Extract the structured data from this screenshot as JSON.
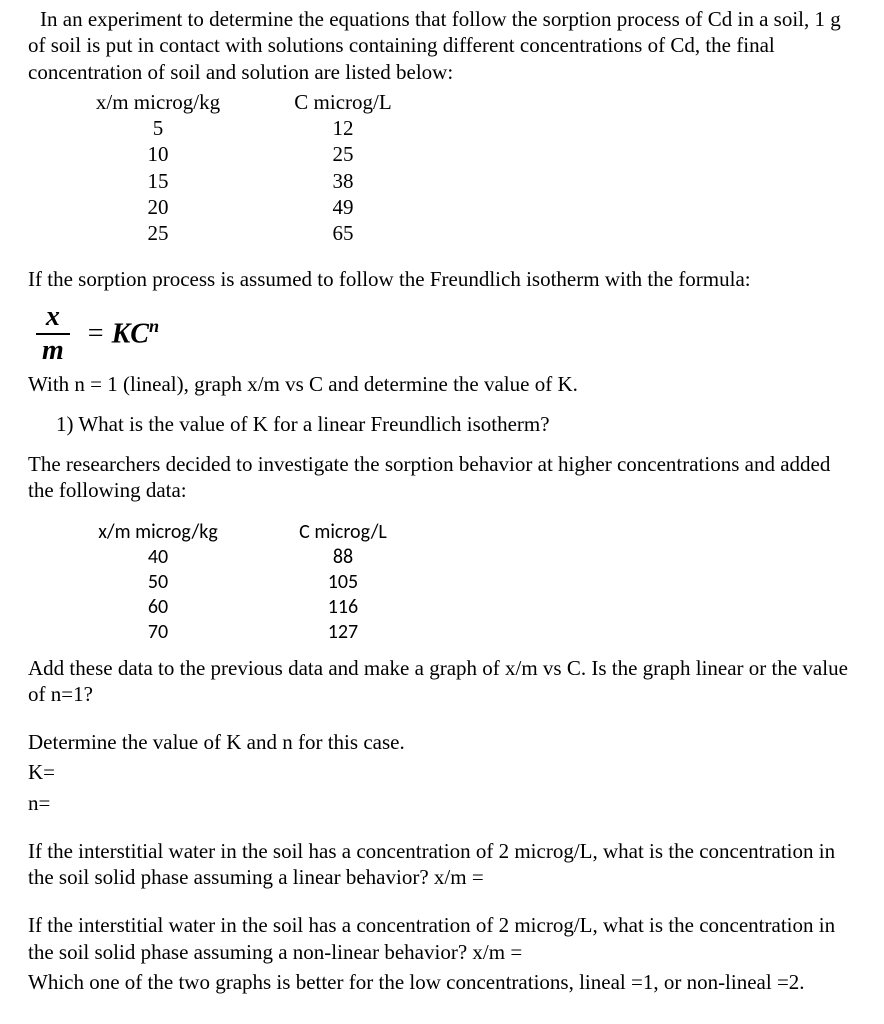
{
  "intro": "In an experiment to determine the equations that follow the sorption process of Cd in a soil, 1 g of soil is put in contact with solutions containing different concentrations of Cd, the final concentration of soil and solution are listed below:",
  "table1": {
    "headers": {
      "col1": "x/m microg/kg",
      "col2": "C microg/L"
    },
    "rows": [
      {
        "c1": "5",
        "c2": "12"
      },
      {
        "c1": "10",
        "c2": "25"
      },
      {
        "c1": "15",
        "c2": "38"
      },
      {
        "c1": "20",
        "c2": "49"
      },
      {
        "c1": "25",
        "c2": "65"
      }
    ]
  },
  "assume_line": "If the sorption process is assumed to follow the Freundlich isotherm with the formula:",
  "formula": {
    "num": "x",
    "den": "m",
    "rhs_K": "K",
    "rhs_C": "C",
    "rhs_n": "n",
    "equals": "="
  },
  "with_line": "With n = 1 (lineal), graph x/m vs C and determine the value of K.",
  "q1": "1)  What is the value of K for a linear Freundlich isotherm?",
  "researchers": "The researchers decided to investigate the sorption behavior at higher concentrations and added the following data:",
  "table2": {
    "headers": {
      "col1": "x/m microg/kg",
      "col2": "C microg/L"
    },
    "rows": [
      {
        "c1": "40",
        "c2": "88"
      },
      {
        "c1": "50",
        "c2": "105"
      },
      {
        "c1": "60",
        "c2": "116"
      },
      {
        "c1": "70",
        "c2": "127"
      }
    ]
  },
  "add_line": "Add these data to the previous data and make a graph of x/m vs C. Is the graph linear or the value of n=1?",
  "determine": "Determine the value of K and n for this case.",
  "K_eq": "K=",
  "n_eq": "n=",
  "q_linear": "If  the interstitial water in the soil has a concentration of 2 microg/L, what is the concentration in the soil solid phase assuming a linear behavior? x/m =",
  "q_nonlinear": "If  the interstitial water in the soil has a concentration of 2 microg/L, what is the concentration in the soil solid phase assuming a non-linear behavior? x/m =",
  "q_which": "Which one of the two graphs is better for the low concentrations, lineal =1, or non-lineal =2."
}
